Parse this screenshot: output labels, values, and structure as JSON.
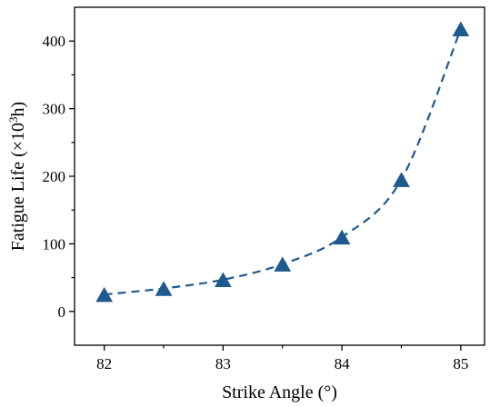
{
  "chart_data": {
    "type": "scatter",
    "xlabel": "Strike Angle (°)",
    "ylabel": {
      "prefix": "Fatigue Life (×10",
      "superscript": "3",
      "suffix": "h)"
    },
    "xlim": [
      81.75,
      85.2
    ],
    "ylim": [
      -50,
      450
    ],
    "x_ticks": [
      82,
      83,
      84,
      85
    ],
    "x_minor_ticks": [
      82.5,
      83.5,
      84.5
    ],
    "y_ticks": [
      0,
      100,
      200,
      300,
      400
    ],
    "y_minor_ticks": [
      50,
      150,
      250,
      350
    ],
    "grid": false,
    "series": [
      {
        "marker": "triangle",
        "color": "#1f5a8e",
        "line_style": "dashed",
        "x": [
          82,
          82.5,
          83,
          83.5,
          84,
          84.5,
          85
        ],
        "y": [
          25,
          34,
          47,
          70,
          110,
          195,
          418
        ]
      }
    ]
  }
}
